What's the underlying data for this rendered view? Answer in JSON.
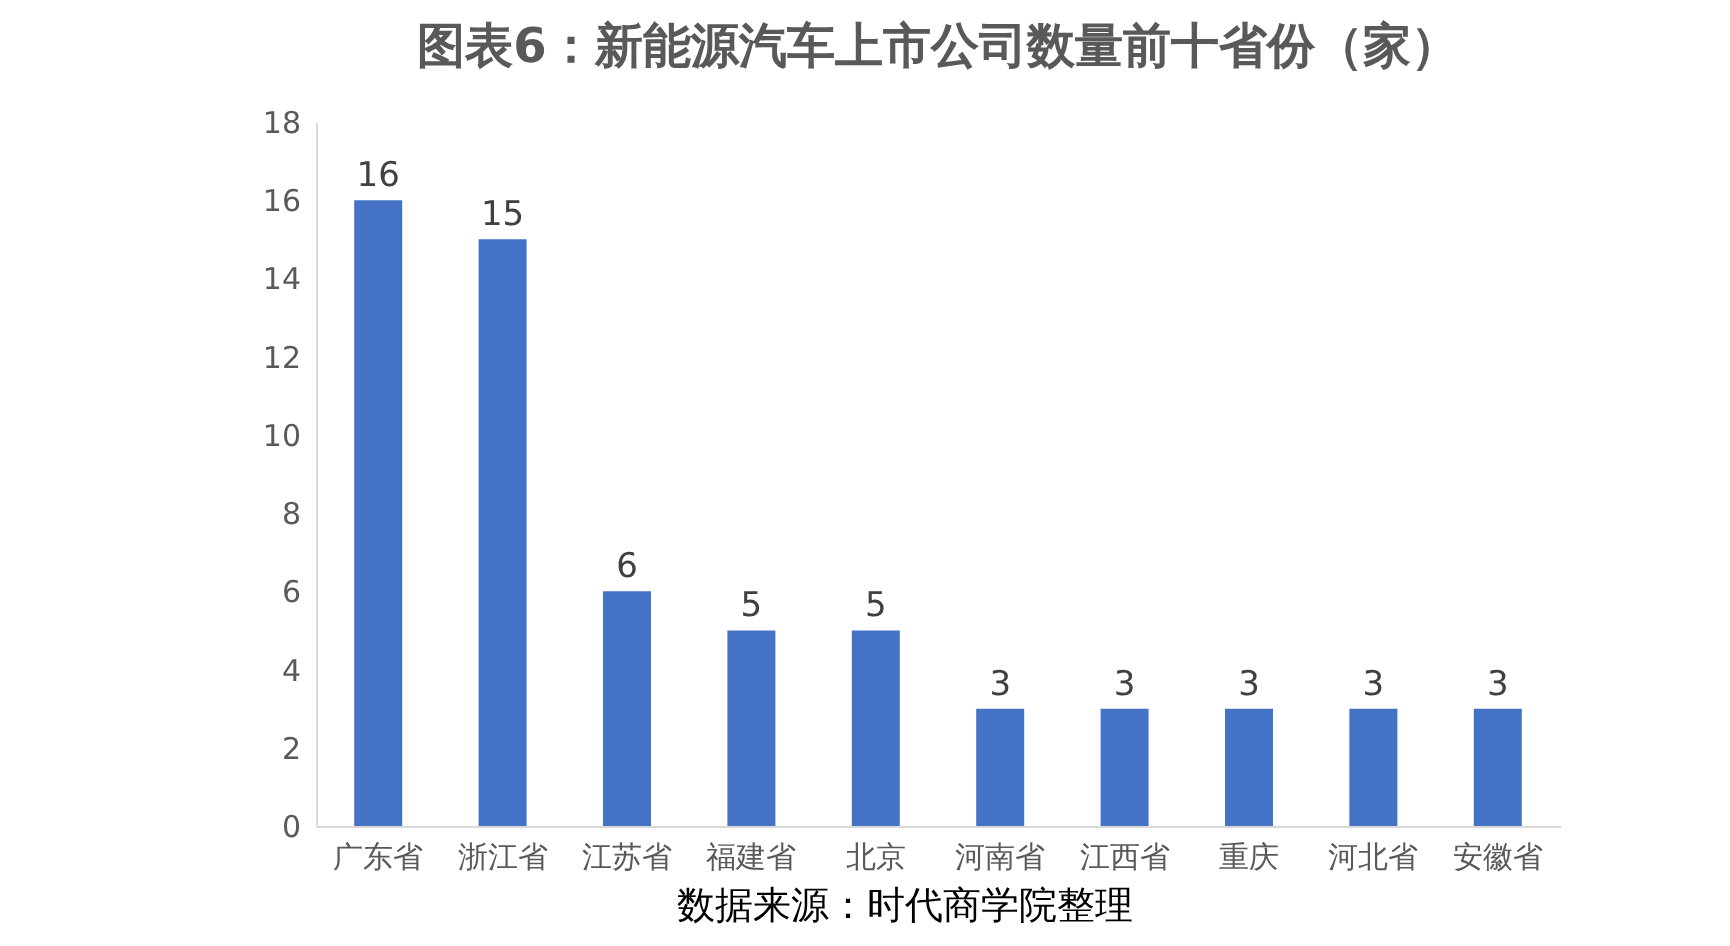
{
  "chart_data": {
    "type": "bar",
    "title": "图表6：新能源汽车上市公司数量前十省份（家）",
    "categories": [
      "广东省",
      "浙江省",
      "江苏省",
      "福建省",
      "北京",
      "河南省",
      "江西省",
      "重庆",
      "河北省",
      "安徽省"
    ],
    "values": [
      16,
      15,
      6,
      5,
      5,
      3,
      3,
      3,
      3,
      3
    ],
    "color": "#4472c4",
    "ylim": [
      0,
      18
    ],
    "yticks": [
      0,
      2,
      4,
      6,
      8,
      10,
      12,
      14,
      16,
      18
    ],
    "grid": false,
    "data_labels": true,
    "annotations": [
      "数据来源：时代商学院整理"
    ]
  }
}
